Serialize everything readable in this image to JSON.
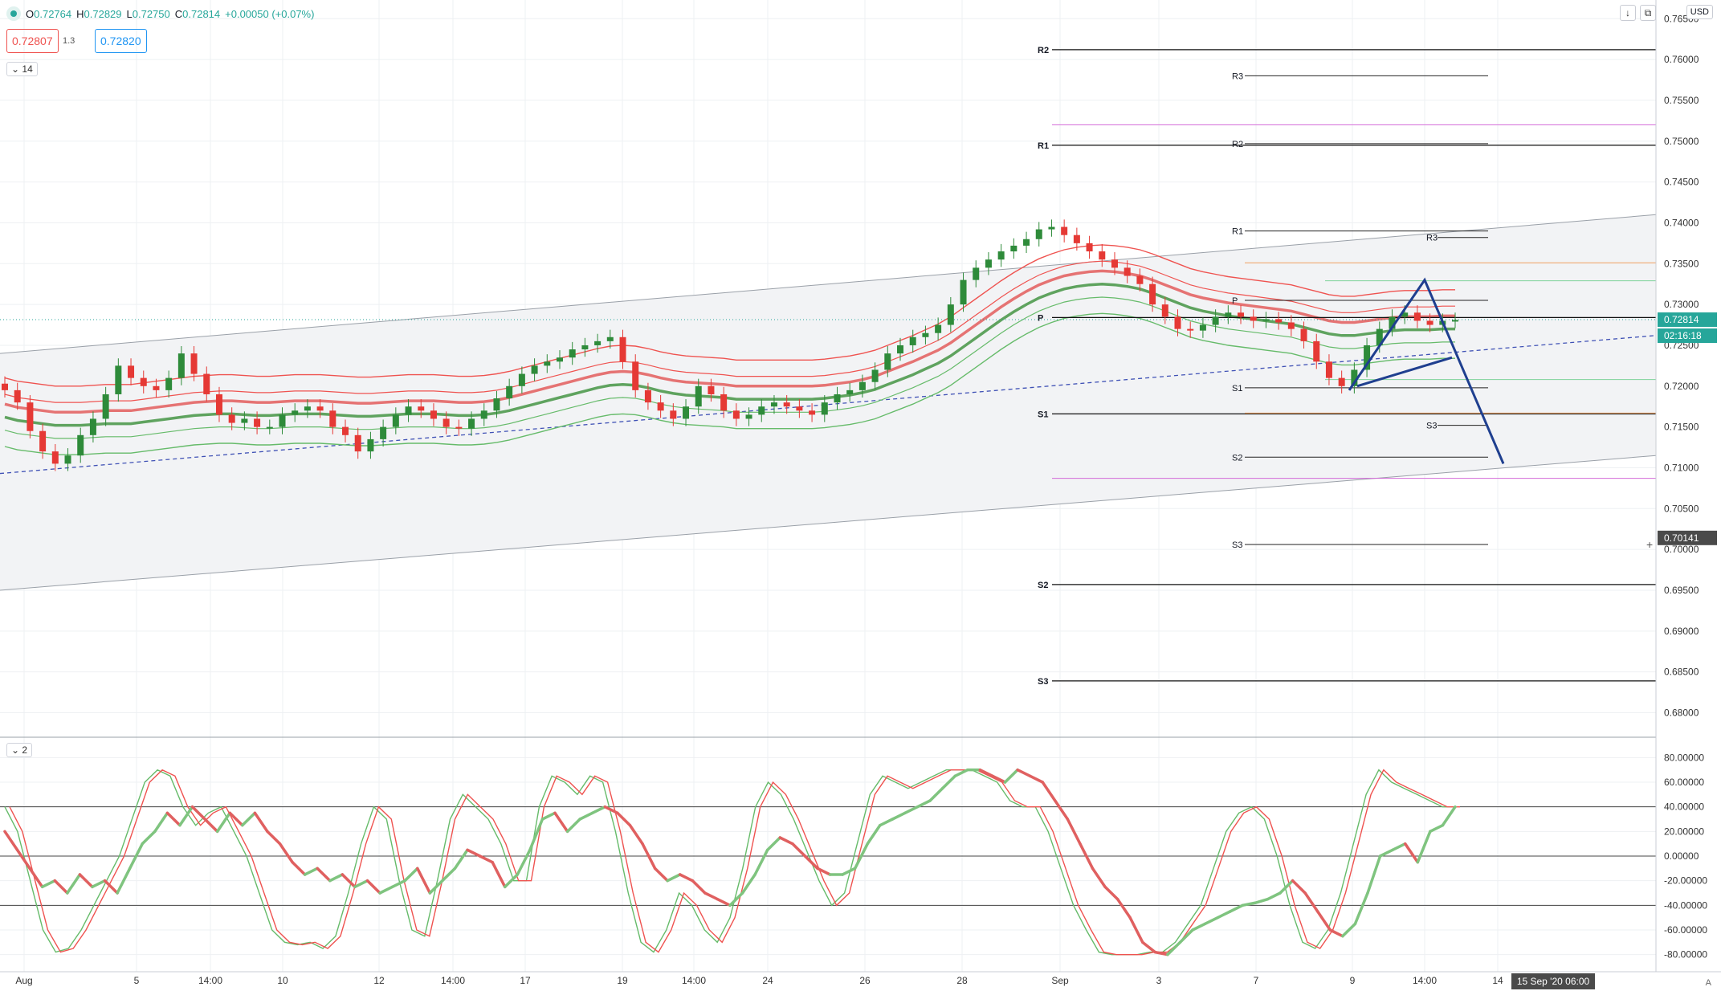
{
  "symbol_bar": {
    "o_label": "O",
    "o_value": "0.72764",
    "h_label": "H",
    "h_value": "0.72829",
    "l_label": "L",
    "l_value": "0.72750",
    "c_label": "C",
    "c_value": "0.72814",
    "change": "+0.00050 (+0.07%)"
  },
  "quote": {
    "sell": "0.72807",
    "spread": "1.3",
    "buy": "0.72820"
  },
  "indicator_tags": {
    "main": "14",
    "oscillator": "2"
  },
  "currency": "USD",
  "auto_label": "A",
  "colors": {
    "bull": "#2e8b3a",
    "bear": "#e53935",
    "grid": "#eef0f3",
    "blue": "#1f3f8f",
    "upper": "#ef5350",
    "lower": "#66bb6a"
  },
  "chart_data": [
    {
      "type": "candlestick",
      "price_axis": {
        "ylim": [
          0.677,
          0.7665
        ],
        "ticks": [
          "0.76500",
          "0.76000",
          "0.75500",
          "0.75000",
          "0.74500",
          "0.74000",
          "0.73500",
          "0.73000",
          "0.72500",
          "0.72000",
          "0.71500",
          "0.71000",
          "0.70500",
          "0.70000",
          "0.69500",
          "0.69000",
          "0.68500",
          "0.68000"
        ],
        "tick_values": [
          0.765,
          0.76,
          0.755,
          0.75,
          0.745,
          0.74,
          0.735,
          0.73,
          0.725,
          0.72,
          0.715,
          0.71,
          0.705,
          0.7,
          0.695,
          0.69,
          0.685,
          0.68
        ]
      },
      "time_axis": {
        "ticks": [
          "Aug",
          "5",
          "14:00",
          "10",
          "12",
          "14:00",
          "17",
          "19",
          "14:00",
          "24",
          "26",
          "28",
          "Sep",
          "3",
          "7",
          "9",
          "14:00",
          "14"
        ],
        "cursor_label": "15 Sep '20  06:00"
      },
      "price_labels": {
        "last": "0.72814",
        "countdown": "02:16:18",
        "cursor": "0.70141"
      },
      "weekly_pivots": {
        "R2": 0.7612,
        "R1": 0.7495,
        "P": 0.7284,
        "S1": 0.7166,
        "S2": 0.6957,
        "S3": 0.6839
      },
      "current_pivots": {
        "R3": 0.758,
        "R2": 0.7497,
        "R1": 0.739,
        "P": 0.7305,
        "S1": 0.7198,
        "S2": 0.7113,
        "S3": 0.7006
      },
      "sub_pivots": {
        "R3": 0.7382,
        "S3": 0.7152
      },
      "magenta_levels": [
        0.752,
        0.7087
      ],
      "orange_levels": [
        0.7351,
        0.7167
      ],
      "green_levels": [
        0.7329,
        0.7208
      ],
      "close_path": [
        0.7195,
        0.718,
        0.7145,
        0.712,
        0.7105,
        0.7115,
        0.714,
        0.716,
        0.719,
        0.7225,
        0.721,
        0.72,
        0.7195,
        0.721,
        0.724,
        0.7215,
        0.719,
        0.7165,
        0.7155,
        0.716,
        0.715,
        0.715,
        0.7165,
        0.717,
        0.7175,
        0.717,
        0.715,
        0.714,
        0.712,
        0.7135,
        0.715,
        0.7165,
        0.7175,
        0.717,
        0.716,
        0.715,
        0.7148,
        0.716,
        0.717,
        0.7185,
        0.72,
        0.7215,
        0.7225,
        0.723,
        0.7235,
        0.7245,
        0.725,
        0.7255,
        0.726,
        0.723,
        0.7195,
        0.718,
        0.717,
        0.716,
        0.7175,
        0.72,
        0.719,
        0.717,
        0.716,
        0.7165,
        0.7175,
        0.718,
        0.7175,
        0.717,
        0.7165,
        0.718,
        0.719,
        0.7195,
        0.7205,
        0.722,
        0.724,
        0.725,
        0.726,
        0.7265,
        0.7275,
        0.73,
        0.733,
        0.7345,
        0.7355,
        0.7365,
        0.7372,
        0.738,
        0.7392,
        0.7395,
        0.7385,
        0.7375,
        0.7365,
        0.7355,
        0.7345,
        0.7335,
        0.7325,
        0.73,
        0.7285,
        0.727,
        0.7268,
        0.7275,
        0.7285,
        0.729,
        0.7285,
        0.728,
        0.7282,
        0.7278,
        0.727,
        0.7255,
        0.723,
        0.721,
        0.72,
        0.722,
        0.725,
        0.727,
        0.7285,
        0.729,
        0.728,
        0.7275,
        0.728,
        0.7281
      ],
      "band_mid": [
        0.7168,
        0.7164,
        0.7162,
        0.716,
        0.7158,
        0.7158,
        0.7158,
        0.7159,
        0.716,
        0.716,
        0.716,
        0.7162,
        0.7164,
        0.7166,
        0.7168,
        0.717,
        0.7171,
        0.7172,
        0.7172,
        0.7171,
        0.717,
        0.717,
        0.7171,
        0.7172,
        0.7172,
        0.7172,
        0.7171,
        0.717,
        0.7169,
        0.7169,
        0.717,
        0.7171,
        0.7172,
        0.7172,
        0.7172,
        0.7171,
        0.717,
        0.717,
        0.7171,
        0.7173,
        0.7176,
        0.718,
        0.7184,
        0.7188,
        0.7192,
        0.7196,
        0.72,
        0.7204,
        0.7207,
        0.7208,
        0.7207,
        0.7204,
        0.72,
        0.7197,
        0.7195,
        0.7194,
        0.7193,
        0.7192,
        0.719,
        0.719,
        0.719,
        0.719,
        0.719,
        0.719,
        0.719,
        0.7191,
        0.7193,
        0.7195,
        0.7198,
        0.7202,
        0.7208,
        0.7214,
        0.722,
        0.7227,
        0.7234,
        0.7243,
        0.7254,
        0.7265,
        0.7276,
        0.7287,
        0.7297,
        0.7306,
        0.7314,
        0.732,
        0.7325,
        0.7328,
        0.733,
        0.7331,
        0.733,
        0.7328,
        0.7325,
        0.732,
        0.7314,
        0.7308,
        0.7302,
        0.7298,
        0.7295,
        0.7292,
        0.729,
        0.7288,
        0.7286,
        0.7284,
        0.7282,
        0.7278,
        0.7274,
        0.727,
        0.7268,
        0.7268,
        0.727,
        0.7272,
        0.7274,
        0.7275,
        0.7275,
        0.7275,
        0.7276,
        0.7276
      ]
    },
    {
      "type": "line",
      "name": "oscillator",
      "ylim": [
        -90,
        90
      ],
      "ticks": [
        "80.00000",
        "60.00000",
        "40.00000",
        "20.00000",
        "0.00000",
        "-20.00000",
        "-40.00000",
        "-60.00000",
        "-80.00000"
      ],
      "tick_values": [
        80,
        60,
        40,
        20,
        0,
        -20,
        -40,
        -60,
        -80
      ],
      "levels": [
        40,
        0,
        -40
      ],
      "series": [
        {
          "values": [
            20,
            5,
            -10,
            -25,
            -20,
            -30,
            -15,
            -25,
            -20,
            -30,
            -10,
            10,
            20,
            35,
            25,
            40,
            30,
            20,
            35,
            25,
            35,
            20,
            10,
            -5,
            -15,
            -10,
            -20,
            -15,
            -25,
            -20,
            -30,
            -25,
            -20,
            -10,
            -30,
            -20,
            -10,
            5,
            0,
            -5,
            -25,
            -15,
            5,
            30,
            35,
            20,
            30,
            35,
            40,
            35,
            25,
            10,
            -10,
            -20,
            -15,
            -20,
            -30,
            -35,
            -40,
            -30,
            -15,
            5,
            15,
            10,
            0,
            -10,
            -15,
            -15,
            -10,
            10,
            25,
            30,
            35,
            40,
            45,
            55,
            65,
            70,
            70,
            65,
            60,
            70,
            65,
            60,
            45,
            30,
            10,
            -10,
            -25,
            -35,
            -50,
            -70,
            -78,
            -80,
            -70,
            -60,
            -55,
            -50,
            -45,
            -40,
            -38,
            -35,
            -30,
            -20,
            -30,
            -45,
            -60,
            -65,
            -55,
            -30,
            0,
            5,
            10,
            -5,
            20,
            25,
            40
          ]
        },
        {
          "values": [
            40,
            20,
            -20,
            -60,
            -78,
            -75,
            -60,
            -40,
            -20,
            0,
            30,
            60,
            70,
            65,
            40,
            25,
            35,
            40,
            20,
            0,
            -30,
            -60,
            -70,
            -72,
            -70,
            -75,
            -65,
            -30,
            10,
            40,
            30,
            -20,
            -60,
            -65,
            -20,
            30,
            50,
            40,
            30,
            10,
            -20,
            -20,
            40,
            65,
            60,
            50,
            65,
            60,
            20,
            -30,
            -70,
            -78,
            -60,
            -30,
            -40,
            -60,
            -70,
            -50,
            -10,
            40,
            60,
            50,
            30,
            5,
            -20,
            -40,
            -30,
            10,
            50,
            65,
            60,
            55,
            60,
            65,
            70,
            70,
            70,
            65,
            60,
            45,
            40,
            40,
            20,
            -10,
            -40,
            -60,
            -78,
            -80,
            -80,
            -80,
            -78,
            -78,
            -70,
            -55,
            -40,
            -10,
            20,
            35,
            40,
            30,
            0,
            -40,
            -70,
            -75,
            -60,
            -30,
            10,
            50,
            70,
            60,
            55,
            50,
            45,
            40,
            40
          ]
        }
      ]
    }
  ]
}
